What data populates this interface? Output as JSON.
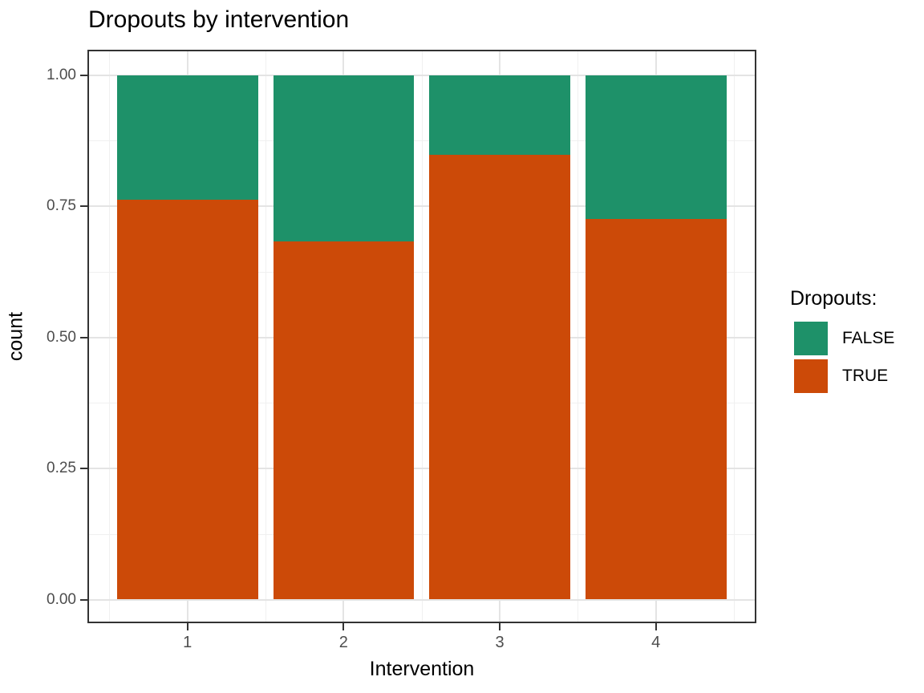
{
  "title": "Dropouts by intervention",
  "chart_data": {
    "type": "bar",
    "subtype": "stacked-proportion",
    "title": "Dropouts by intervention",
    "xlabel": "Intervention",
    "ylabel": "count",
    "categories": [
      "1",
      "2",
      "3",
      "4"
    ],
    "series": [
      {
        "name": "TRUE",
        "color": "#cc4a08",
        "values": [
          0.762,
          0.682,
          0.848,
          0.725
        ]
      },
      {
        "name": "FALSE",
        "color": "#1e9169",
        "values": [
          0.238,
          0.318,
          0.152,
          0.275
        ]
      }
    ],
    "stack_order_bottom_to_top": [
      "TRUE",
      "FALSE"
    ],
    "ylim": [
      0,
      1
    ],
    "y_major_ticks": [
      0,
      0.25,
      0.5,
      0.75,
      1
    ],
    "y_tick_labels": [
      "0.00",
      "0.25",
      "0.50",
      "0.75",
      "1.00"
    ],
    "y_minor_ticks": [
      0.125,
      0.375,
      0.625,
      0.875
    ],
    "x_minor_positions": [
      0.5,
      1.5,
      2.5,
      3.5,
      4.5
    ],
    "grid": true,
    "legend": {
      "title": "Dropouts:",
      "position": "right",
      "entries": [
        {
          "label": "FALSE",
          "color": "#1e9169"
        },
        {
          "label": "TRUE",
          "color": "#cc4a08"
        }
      ]
    }
  },
  "style": {
    "grid_major_color": "#e4e4e4",
    "grid_minor_color": "#f0f0f0",
    "panel_border_color": "#333333",
    "tick_color": "#333333",
    "tick_label_color": "#4d4d4d",
    "text_color": "#000000",
    "background": "#ffffff"
  }
}
